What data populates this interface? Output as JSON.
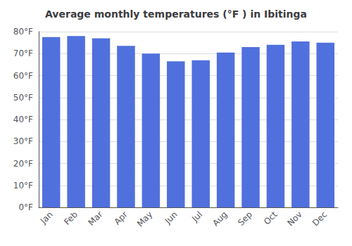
{
  "chart_data": {
    "type": "bar",
    "title": "Average monthly temperatures (°F ) in Ibitinga",
    "categories": [
      "Jan",
      "Feb",
      "Mar",
      "Apr",
      "May",
      "Jun",
      "Jul",
      "Aug",
      "Sep",
      "Oct",
      "Nov",
      "Dec"
    ],
    "values": [
      77.5,
      78.0,
      77.0,
      73.5,
      70.0,
      66.5,
      67.0,
      70.5,
      73.0,
      74.0,
      75.5,
      75.0
    ],
    "ylim": [
      0,
      80
    ],
    "yticks": [
      {
        "value": 0,
        "label": "0°F"
      },
      {
        "value": 10,
        "label": "10°F"
      },
      {
        "value": 20,
        "label": "20°F"
      },
      {
        "value": 30,
        "label": "30°F"
      },
      {
        "value": 40,
        "label": "40°F"
      },
      {
        "value": 50,
        "label": "50°F"
      },
      {
        "value": 60,
        "label": "60°F"
      },
      {
        "value": 70,
        "label": "70°F"
      },
      {
        "value": 80,
        "label": "80°F"
      }
    ],
    "grid": true
  }
}
